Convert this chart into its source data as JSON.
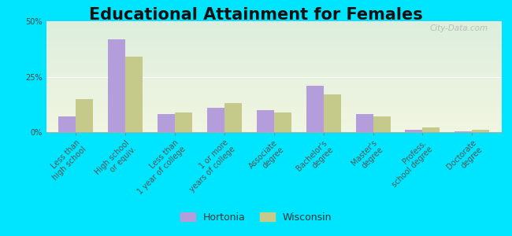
{
  "title": "Educational Attainment for Females",
  "categories": [
    "Less than\nhigh school",
    "High school\nor equiv.",
    "Less than\n1 year of college",
    "1 or more\nyears of college",
    "Associate\ndegree",
    "Bachelor's\ndegree",
    "Master's\ndegree",
    "Profess.\nschool degree",
    "Doctorate\ndegree"
  ],
  "hortonia": [
    7.0,
    42.0,
    8.0,
    11.0,
    10.0,
    21.0,
    8.0,
    1.0,
    0.5
  ],
  "wisconsin": [
    15.0,
    34.0,
    9.0,
    13.0,
    9.0,
    17.0,
    7.0,
    2.0,
    1.0
  ],
  "hortonia_color": "#b39ddb",
  "wisconsin_color": "#c5c98a",
  "background_outer": "#00e5ff",
  "background_inner_top": "#ddeedd",
  "background_inner_bottom": "#f0f5e0",
  "ylim": [
    0,
    50
  ],
  "yticks": [
    0,
    25,
    50
  ],
  "ytick_labels": [
    "0%",
    "25%",
    "50%"
  ],
  "bar_width": 0.35,
  "legend_hortonia": "Hortonia",
  "legend_wisconsin": "Wisconsin",
  "title_fontsize": 15,
  "tick_fontsize": 7.0,
  "legend_fontsize": 9,
  "watermark": "City-Data.com"
}
